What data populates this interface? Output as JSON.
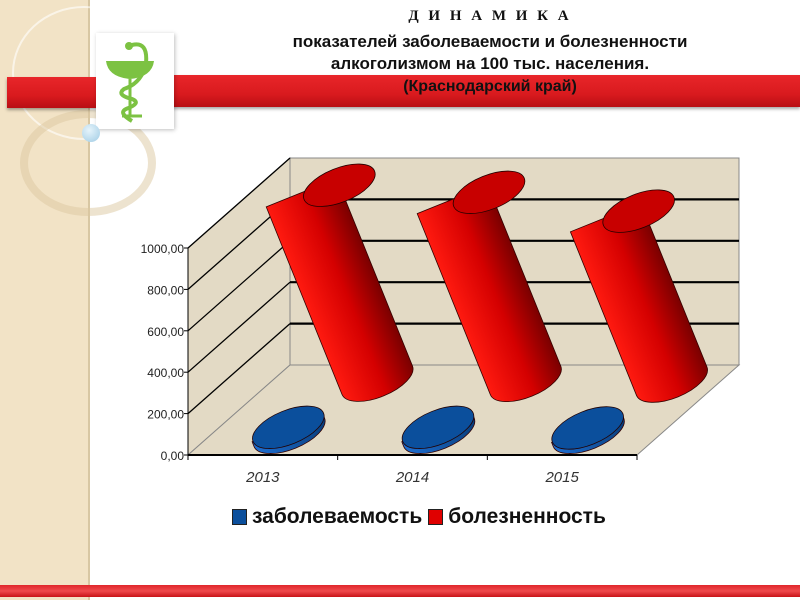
{
  "title": {
    "line1": "Д И Н А М И К А",
    "line2": "показателей заболеваемости и болезненности",
    "line3": "алкоголизмом на 100 тыс. населения.",
    "line4": "(Краснодарский край)"
  },
  "logo": {
    "icon": "bowl-of-hygieia-icon",
    "color": "#7cc242"
  },
  "chart_data": {
    "type": "bar",
    "style": "3d-cylinder",
    "categories": [
      "2013",
      "2014",
      "2015"
    ],
    "series": [
      {
        "name": "заболеваемость",
        "color": "#0b4f9c",
        "values": [
          25,
          25,
          22
        ]
      },
      {
        "name": "болезненность",
        "color": "#e00000",
        "values": [
          977,
          943,
          852
        ]
      }
    ],
    "yticks": [
      "0,00",
      "200,00",
      "400,00",
      "600,00",
      "800,00",
      "1000,00"
    ],
    "ylim": [
      0,
      1000
    ],
    "grid": true,
    "legend": "bottom"
  }
}
